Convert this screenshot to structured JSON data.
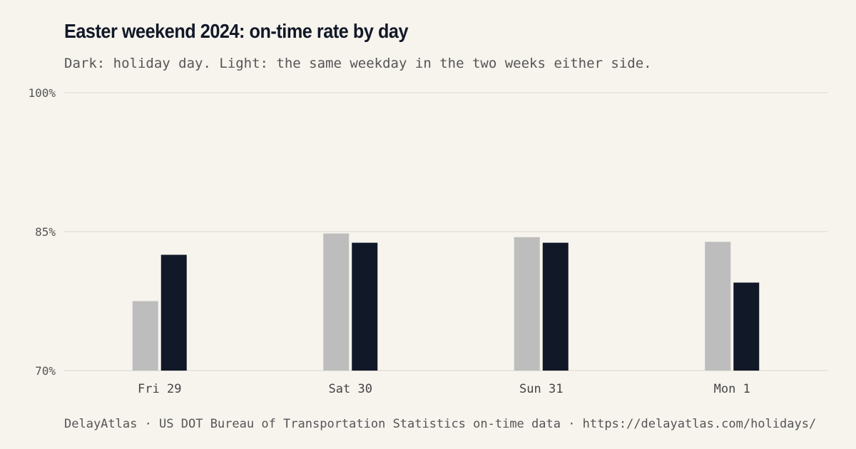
{
  "header": {
    "title": "Easter weekend 2024: on-time rate by day",
    "subtitle": "Dark: holiday day. Light: the same weekday in the two weeks either side."
  },
  "footer": {
    "source": "DelayAtlas · US DOT Bureau of Transportation Statistics on-time data · https://delayatlas.com/holidays/"
  },
  "colors": {
    "holiday": "#111827",
    "comparison": "#bdbdbd",
    "grid": "#e4e1da"
  },
  "chart_data": {
    "type": "bar",
    "categories": [
      "Fri 29",
      "Sat 30",
      "Sun 31",
      "Mon 1"
    ],
    "series": [
      {
        "key": "comparison",
        "values": [
          77.5,
          84.8,
          84.4,
          83.9
        ]
      },
      {
        "key": "holiday",
        "values": [
          82.5,
          83.8,
          83.8,
          79.5
        ]
      }
    ],
    "ylim": [
      70,
      100
    ],
    "yticks": [
      70,
      85,
      100
    ],
    "ytick_labels": [
      "70%",
      "85%",
      "100%"
    ],
    "grid": true
  }
}
